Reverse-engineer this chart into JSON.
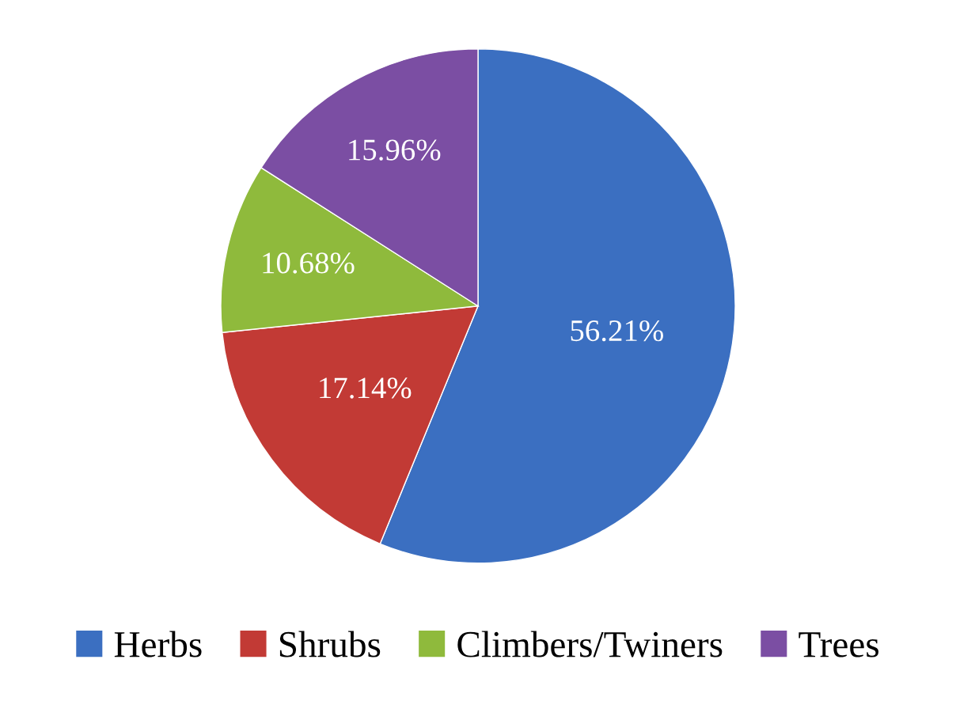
{
  "chart_data": {
    "type": "pie",
    "categories": [
      "Herbs",
      "Shrubs",
      "Climbers/Twiners",
      "Trees"
    ],
    "values": [
      56.21,
      17.14,
      10.68,
      15.96
    ],
    "colors": [
      "#3b6fc1",
      "#c23a35",
      "#8fba3c",
      "#7b4ea3"
    ],
    "value_labels": [
      "56.21%",
      "17.14%",
      "10.68%",
      "15.96%"
    ],
    "legend": "bottom"
  }
}
